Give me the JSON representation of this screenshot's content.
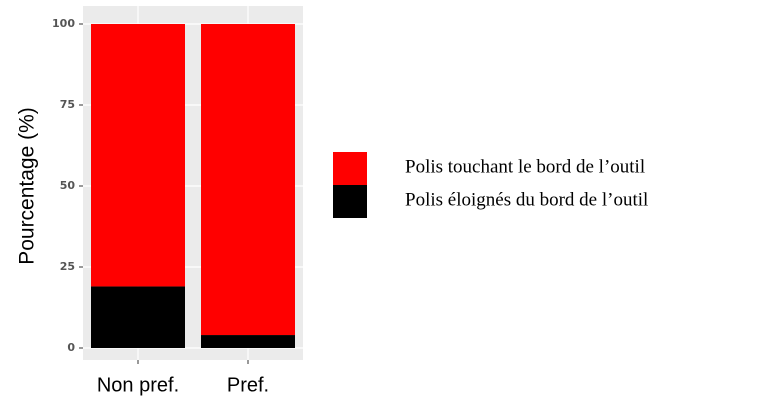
{
  "chart_data": {
    "type": "stacked_bar",
    "ylabel": "Pourcentage (%)",
    "categories": [
      "Non pref.",
      "Pref."
    ],
    "series": [
      {
        "name": "Polis touchant le bord de l’outil",
        "color": "#ff0000",
        "values": [
          81,
          96
        ]
      },
      {
        "name": "Polis éloignés du bord de l’outil",
        "color": "#000000",
        "values": [
          19,
          4
        ]
      }
    ],
    "ylim": [
      0,
      100
    ],
    "yticks": [
      0,
      25,
      50,
      75,
      100
    ],
    "grid": true,
    "legend": "right"
  }
}
